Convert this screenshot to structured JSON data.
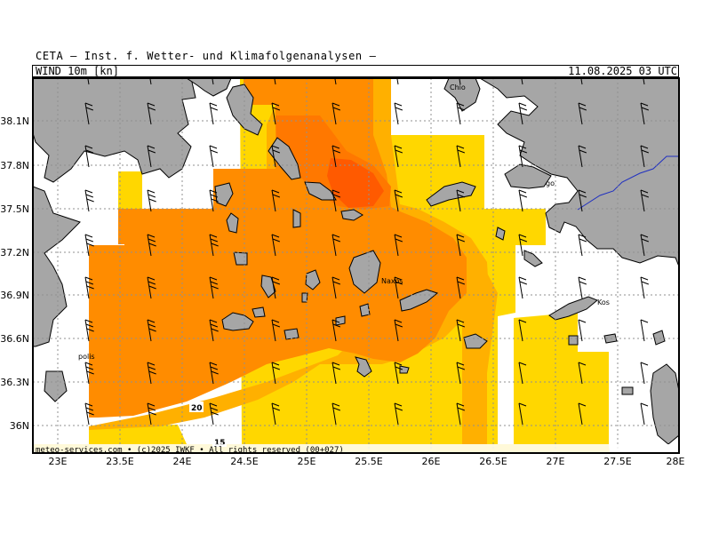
{
  "header": {
    "title": "CETA — Inst. f. Wetter- und Klimafolgenanalysen —",
    "field": "WIND_10m [kn]",
    "valid_time": "11.08.2025 03 UTC"
  },
  "footer": {
    "credit": "meteo-services.com • (c)2025 IWKF • All rights reserved (00+027)"
  },
  "map": {
    "lon_range": [
      22.8,
      28.0
    ],
    "lat_range": [
      35.85,
      38.4
    ],
    "x_ticks": [
      "23E",
      "23.5E",
      "24E",
      "24.5E",
      "25E",
      "25.5E",
      "26E",
      "26.5E",
      "27E",
      "27.5E",
      "28E"
    ],
    "y_ticks": [
      "38.1N",
      "37.8N",
      "37.5N",
      "37.2N",
      "36.9N",
      "36.6N",
      "36.3N",
      "36N"
    ],
    "place_labels": [
      "Chio",
      "Naxos",
      "Kos",
      "polis",
      "go"
    ],
    "contour_labels": [
      "20",
      "15"
    ],
    "colors": {
      "land": "#a6a6a6",
      "band_10_15": "#ffef80",
      "band_15_20": "#ffd700",
      "band_20_25": "#ffb000",
      "band_25_30": "#ff8c00",
      "band_30_35": "#ff7800",
      "band_35_plus": "#ff5a00",
      "grid": "#909090",
      "border": "#2030c0"
    },
    "wind_direction": "northerly",
    "grid_lines": "dotted"
  }
}
